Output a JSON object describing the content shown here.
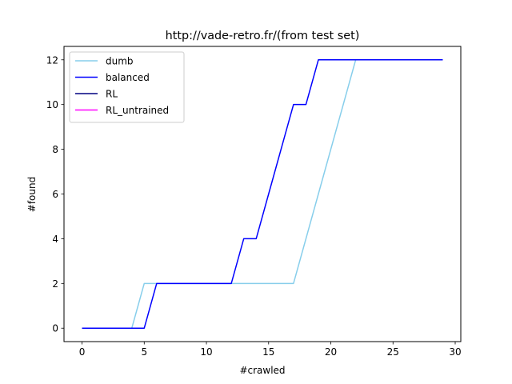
{
  "chart_data": {
    "type": "line",
    "title": "http://vade-retro.fr/(from test set)",
    "xlabel": "#crawled",
    "ylabel": "#found",
    "xlim": [
      -1.45,
      30.45
    ],
    "ylim": [
      -0.6,
      12.6
    ],
    "xticks": [
      0,
      5,
      10,
      15,
      20,
      25,
      30
    ],
    "yticks": [
      0,
      2,
      4,
      6,
      8,
      10,
      12
    ],
    "grid": false,
    "legend_position": "upper-left",
    "series": [
      {
        "name": "dumb",
        "color": "#87ceeb",
        "x": [
          0,
          1,
          2,
          3,
          4,
          5,
          6,
          7,
          8,
          9,
          10,
          11,
          12,
          13,
          14,
          15,
          16,
          17,
          18,
          19,
          20,
          21,
          22,
          23,
          24,
          25,
          26,
          27,
          28,
          29
        ],
        "y": [
          0,
          0,
          0,
          0,
          0,
          2,
          2,
          2,
          2,
          2,
          2,
          2,
          2,
          2,
          2,
          2,
          2,
          2,
          4,
          6,
          8,
          10,
          12,
          12,
          12,
          12,
          12,
          12,
          12,
          12
        ]
      },
      {
        "name": "balanced",
        "color": "#0000ff",
        "x": [
          0,
          1,
          2,
          3,
          4,
          5,
          6,
          7,
          8,
          9,
          10,
          11,
          12,
          13,
          14,
          15,
          16,
          17,
          18,
          19,
          20,
          21,
          22,
          23,
          24,
          25,
          26,
          27,
          28,
          29
        ],
        "y": [
          0,
          0,
          0,
          0,
          0,
          0,
          2,
          2,
          2,
          2,
          2,
          2,
          2,
          4,
          4,
          6,
          8,
          10,
          10,
          12,
          12,
          12,
          12,
          12,
          12,
          12,
          12,
          12,
          12,
          12
        ]
      },
      {
        "name": "RL",
        "color": "#000080",
        "x": [],
        "y": []
      },
      {
        "name": "RL_untrained",
        "color": "#ff00ff",
        "x": [],
        "y": []
      }
    ]
  }
}
